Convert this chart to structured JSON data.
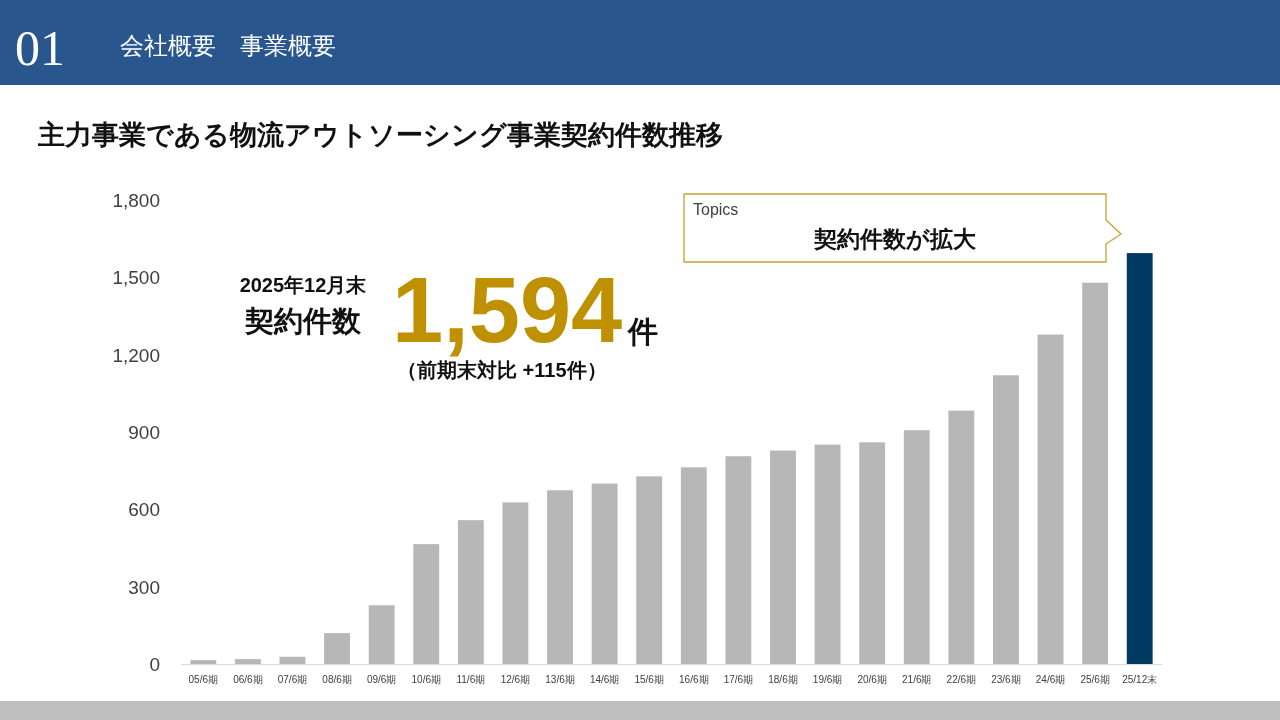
{
  "chart_data": {
    "type": "bar",
    "title": "主力事業である物流アウトソーシング事業契約件数推移",
    "categories": [
      "05/6期",
      "06/6期",
      "07/6期",
      "08/6期",
      "09/6期",
      "10/6期",
      "11/6期",
      "12/6期",
      "13/6期",
      "14/6期",
      "15/6期",
      "16/6期",
      "17/6期",
      "18/6期",
      "19/6期",
      "20/6期",
      "21/6期",
      "22/6期",
      "23/6期",
      "24/6期",
      "25/6期",
      "25/12末"
    ],
    "values": [
      15,
      19,
      28,
      120,
      228,
      465,
      558,
      627,
      674,
      700,
      728,
      763,
      806,
      828,
      851,
      860,
      907,
      983,
      1120,
      1278,
      1479,
      1594
    ],
    "colors": [
      "#b7b7b7",
      "#b7b7b7",
      "#b7b7b7",
      "#b7b7b7",
      "#b7b7b7",
      "#b7b7b7",
      "#b7b7b7",
      "#b7b7b7",
      "#b7b7b7",
      "#b7b7b7",
      "#b7b7b7",
      "#b7b7b7",
      "#b7b7b7",
      "#b7b7b7",
      "#b7b7b7",
      "#b7b7b7",
      "#b7b7b7",
      "#b7b7b7",
      "#b7b7b7",
      "#b7b7b7",
      "#b7b7b7",
      "#003a63"
    ],
    "ylim": [
      0,
      1800
    ],
    "yticks": [
      0,
      300,
      600,
      900,
      {
        "value": 1200,
        "label": "1,200"
      },
      {
        "value": 1500,
        "label": "1,500"
      },
      {
        "value": 1800,
        "label": "1,800"
      }
    ],
    "annotations": [
      "01",
      "会社概要　事業概要",
      "2025年12月末",
      "契約件数",
      "1,594",
      "件",
      "（前期末対比 +115件）",
      "Topics",
      "契約件数が拡大"
    ]
  }
}
